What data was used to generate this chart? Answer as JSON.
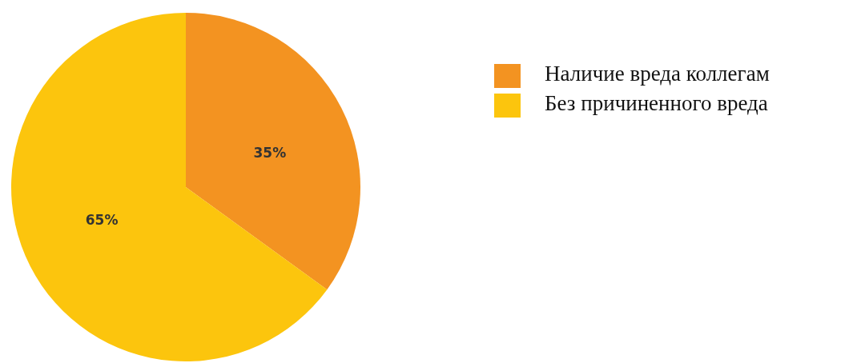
{
  "chart_data": {
    "type": "pie",
    "categories": [
      "Наличие вреда коллегам",
      "Без причиненного вреда"
    ],
    "values": [
      35,
      65
    ],
    "colors": [
      "#f39321",
      "#fcc50d"
    ],
    "value_labels": [
      "35%",
      "65%"
    ],
    "legend": "top right"
  }
}
